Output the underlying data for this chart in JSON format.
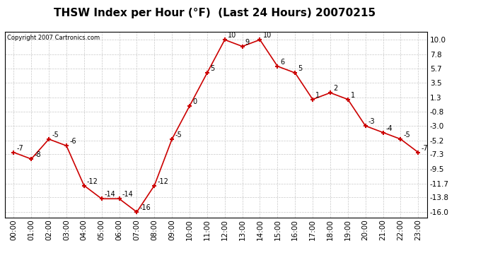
{
  "title": "THSW Index per Hour (°F)  (Last 24 Hours) 20070215",
  "copyright": "Copyright 2007 Cartronics.com",
  "hours": [
    0,
    1,
    2,
    3,
    4,
    5,
    6,
    7,
    8,
    9,
    10,
    11,
    12,
    13,
    14,
    15,
    16,
    17,
    18,
    19,
    20,
    21,
    22,
    23
  ],
  "values": [
    -7,
    -8,
    -5,
    -6,
    -12,
    -14,
    -14,
    -16,
    -12,
    -5,
    0,
    5,
    10,
    9,
    10,
    6,
    5,
    1,
    2,
    1,
    -3,
    -4,
    -5,
    -7
  ],
  "x_labels": [
    "00:00",
    "01:00",
    "02:00",
    "03:00",
    "04:00",
    "05:00",
    "06:00",
    "07:00",
    "08:00",
    "09:00",
    "10:00",
    "11:00",
    "12:00",
    "13:00",
    "14:00",
    "15:00",
    "16:00",
    "17:00",
    "18:00",
    "19:00",
    "20:00",
    "21:00",
    "22:00",
    "23:00"
  ],
  "y_ticks": [
    10.0,
    7.8,
    5.7,
    3.5,
    1.3,
    -0.8,
    -3.0,
    -5.2,
    -7.3,
    -9.5,
    -11.7,
    -13.8,
    -16.0
  ],
  "line_color": "#cc0000",
  "marker_color": "#cc0000",
  "bg_color": "#ffffff",
  "grid_color": "#c8c8c8",
  "title_fontsize": 11,
  "tick_fontsize": 7.5,
  "annot_fontsize": 7,
  "ylim": [
    -16.8,
    11.2
  ],
  "xlim": [
    -0.5,
    23.5
  ]
}
